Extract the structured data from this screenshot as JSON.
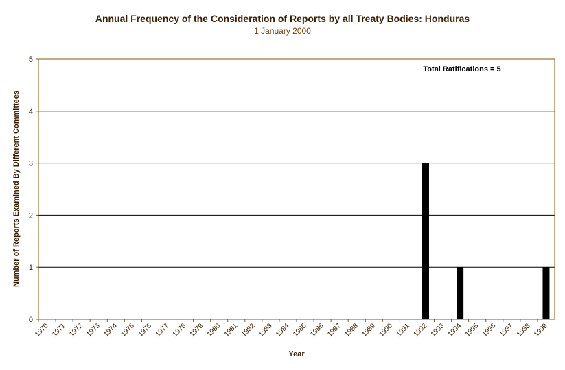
{
  "chart_data": {
    "type": "bar",
    "title": "Annual Frequency of the Consideration of Reports by all Treaty Bodies: Honduras",
    "subtitle": "1 January 2000",
    "xlabel": "Year",
    "ylabel": "Number of Reports Examined By Different Committees",
    "ylim": [
      0,
      5
    ],
    "yticks": [
      "0",
      "1",
      "2",
      "3",
      "4",
      "5"
    ],
    "grid": true,
    "annotation": "Total Ratifications = 5",
    "categories": [
      "1970",
      "1971",
      "1972",
      "1973",
      "1974",
      "1975",
      "1976",
      "1977",
      "1978",
      "1979",
      "1980",
      "1981",
      "1982",
      "1983",
      "1984",
      "1985",
      "1986",
      "1987",
      "1988",
      "1989",
      "1990",
      "1991",
      "1992",
      "1993",
      "1994",
      "1995",
      "1996",
      "1997",
      "1998",
      "1999"
    ],
    "values": [
      0,
      0,
      0,
      0,
      0,
      0,
      0,
      0,
      0,
      0,
      0,
      0,
      0,
      0,
      0,
      0,
      0,
      0,
      0,
      0,
      0,
      0,
      3,
      0,
      1,
      0,
      0,
      0,
      0,
      1
    ],
    "colors": {
      "bar": "#000000",
      "axis": "#8b5a00",
      "grid": "#000000",
      "text": "#3a1f00"
    }
  }
}
